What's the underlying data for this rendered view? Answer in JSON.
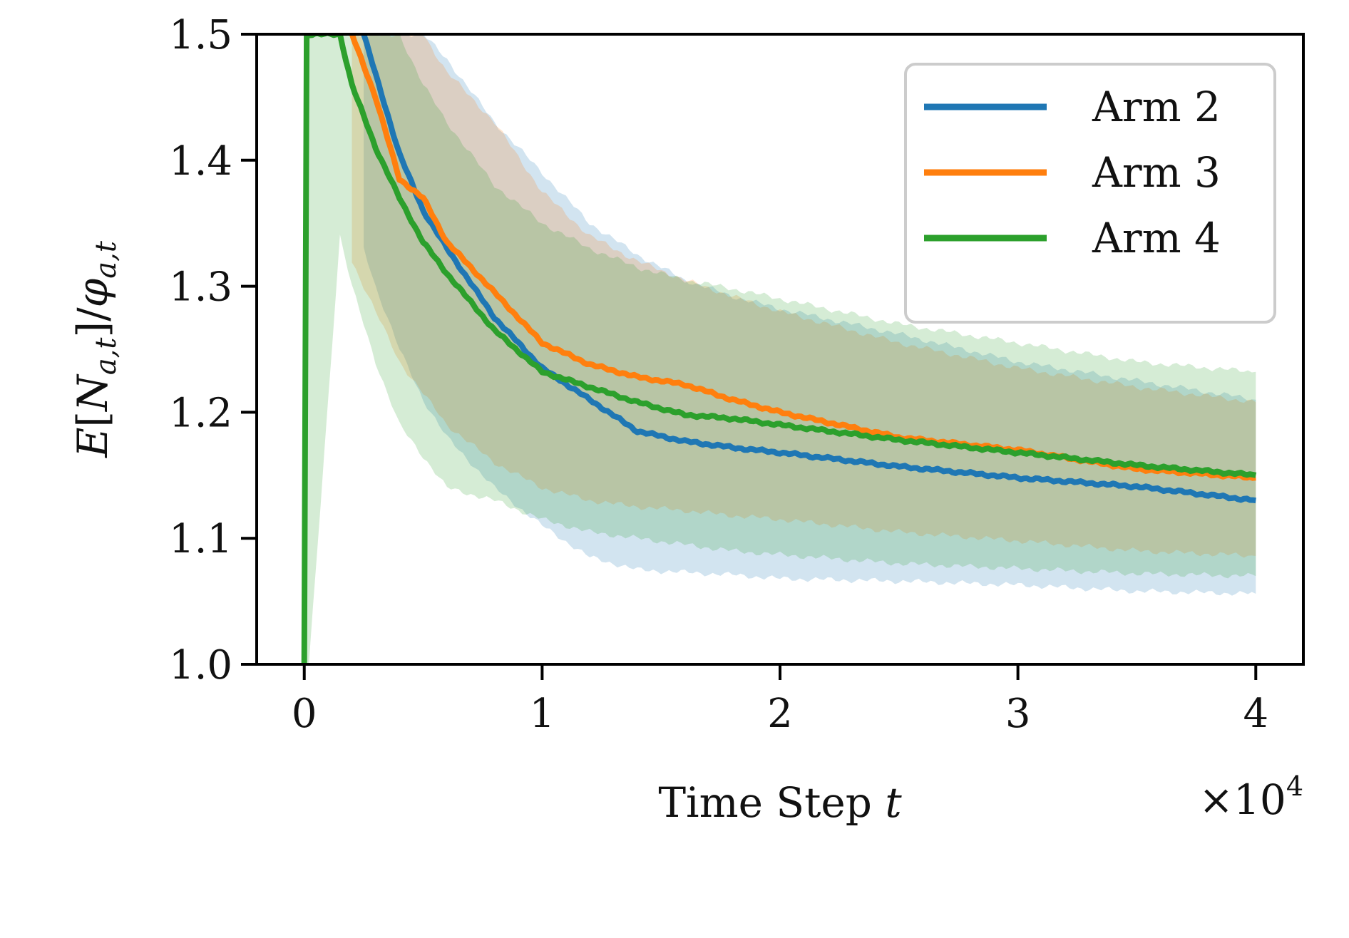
{
  "chart_data": {
    "type": "line",
    "title": "",
    "xlabel": "Time Step",
    "xlabel_var": "t",
    "ylabel": "E[N_{a,t}]/φ_{a,t}",
    "ylabel_parts": {
      "e": "E",
      "n": "N",
      "sub_at": "a,t",
      "phi": "φ"
    },
    "x_multiplier": {
      "base": "×10",
      "exp": "4"
    },
    "xlim": [
      -0.2,
      4.2
    ],
    "ylim": [
      1.0,
      1.5
    ],
    "x_ticks": [
      0,
      1,
      2,
      3,
      4
    ],
    "x_tick_labels": [
      "0",
      "1",
      "2",
      "3",
      "4"
    ],
    "y_ticks": [
      1.0,
      1.1,
      1.2,
      1.3,
      1.4,
      1.5
    ],
    "y_tick_labels": [
      "1.0",
      "1.1",
      "1.2",
      "1.3",
      "1.4",
      "1.5"
    ],
    "legend_position": "top-right",
    "series": [
      {
        "name": "Arm 2",
        "color": "#1f77b4",
        "x": [
          0.25,
          0.3,
          0.4,
          0.5,
          0.6,
          0.8,
          1.0,
          1.2,
          1.4,
          1.6,
          1.8,
          2.0,
          2.5,
          3.0,
          3.5,
          4.0
        ],
        "y": [
          1.5,
          1.468,
          1.405,
          1.36,
          1.33,
          1.275,
          1.235,
          1.21,
          1.185,
          1.177,
          1.172,
          1.168,
          1.157,
          1.148,
          1.141,
          1.13
        ],
        "lower": [
          1.33,
          1.3,
          1.25,
          1.21,
          1.18,
          1.14,
          1.11,
          1.085,
          1.075,
          1.073,
          1.071,
          1.068,
          1.066,
          1.063,
          1.058,
          1.056
        ],
        "upper": [
          1.5,
          1.5,
          1.5,
          1.5,
          1.48,
          1.43,
          1.39,
          1.35,
          1.325,
          1.305,
          1.292,
          1.282,
          1.262,
          1.24,
          1.225,
          1.21
        ]
      },
      {
        "name": "Arm 3",
        "color": "#ff7f0e",
        "x": [
          0.2,
          0.3,
          0.4,
          0.5,
          0.6,
          0.8,
          1.0,
          1.2,
          1.4,
          1.6,
          1.8,
          2.0,
          2.5,
          3.0,
          3.5,
          4.0
        ],
        "y": [
          1.5,
          1.45,
          1.385,
          1.37,
          1.335,
          1.295,
          1.255,
          1.238,
          1.228,
          1.222,
          1.21,
          1.2,
          1.18,
          1.17,
          1.155,
          1.148
        ],
        "lower": [
          1.32,
          1.28,
          1.24,
          1.215,
          1.19,
          1.16,
          1.14,
          1.13,
          1.125,
          1.122,
          1.118,
          1.115,
          1.105,
          1.098,
          1.09,
          1.086
        ],
        "upper": [
          1.5,
          1.5,
          1.5,
          1.5,
          1.47,
          1.43,
          1.375,
          1.34,
          1.32,
          1.305,
          1.292,
          1.28,
          1.255,
          1.235,
          1.22,
          1.208
        ]
      },
      {
        "name": "Arm 4",
        "color": "#2ca02c",
        "x": [
          0.0,
          0.01,
          0.015,
          0.02,
          0.15,
          0.2,
          0.3,
          0.4,
          0.5,
          0.6,
          0.8,
          1.0,
          1.2,
          1.4,
          1.6,
          1.8,
          2.0,
          2.5,
          3.0,
          3.5,
          4.0
        ],
        "y": [
          1.0,
          1.5,
          1.5,
          1.5,
          1.5,
          1.46,
          1.41,
          1.37,
          1.335,
          1.31,
          1.265,
          1.232,
          1.22,
          1.208,
          1.198,
          1.195,
          1.19,
          1.178,
          1.168,
          1.158,
          1.15
        ],
        "lower": [
          1.0,
          1.0,
          1.0,
          1.0,
          1.34,
          1.3,
          1.24,
          1.19,
          1.165,
          1.14,
          1.13,
          1.115,
          1.105,
          1.1,
          1.095,
          1.09,
          1.087,
          1.08,
          1.076,
          1.072,
          1.07
        ],
        "upper": [
          1.0,
          1.5,
          1.5,
          1.5,
          1.5,
          1.5,
          1.5,
          1.5,
          1.46,
          1.43,
          1.38,
          1.35,
          1.33,
          1.315,
          1.305,
          1.298,
          1.29,
          1.27,
          1.255,
          1.24,
          1.232
        ]
      }
    ]
  }
}
